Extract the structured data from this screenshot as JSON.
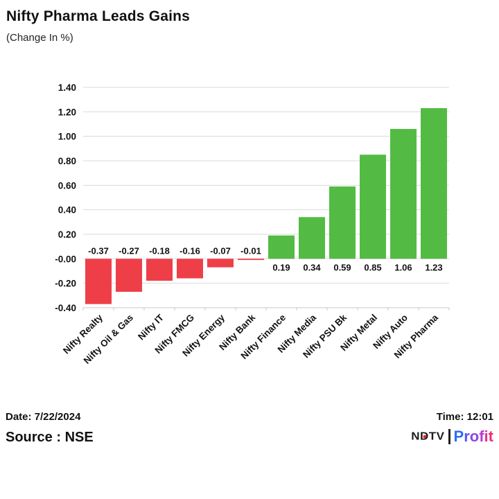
{
  "header": {
    "title": "Nifty Pharma Leads Gains",
    "subtitle": "(Change In %)"
  },
  "chart_data": {
    "type": "bar",
    "categories": [
      "Nifty Realty",
      "Nifty Oil & Gas",
      "Nifty IT",
      "Nifty FMCG",
      "Nifty Energy",
      "Nifty Bank",
      "Nifty Finance",
      "Nifty Media",
      "Nifty PSU Bk",
      "Nifty Metal",
      "Nifty Auto",
      "Nifty Pharma"
    ],
    "values": [
      -0.37,
      -0.27,
      -0.18,
      -0.16,
      -0.07,
      -0.01,
      0.19,
      0.34,
      0.59,
      0.85,
      1.06,
      1.23
    ],
    "bar_value_labels": [
      "-0.37",
      "-0.27",
      "-0.18",
      "-0.16",
      "-0.07",
      "-0.01",
      "0.19",
      "0.34",
      "0.59",
      "0.85",
      "1.06",
      "1.23"
    ],
    "title": "Nifty Pharma Leads Gains",
    "xlabel": "",
    "ylabel": "(Change In %)",
    "ylim": [
      -0.4,
      1.4
    ],
    "ytick_step": 0.2,
    "ytick_labels": [
      "1.40",
      "1.20",
      "1.00",
      "0.80",
      "0.60",
      "0.40",
      "0.20",
      "-0.00",
      "-0.20",
      "-0.40"
    ],
    "grid": true,
    "legend": false,
    "value_labels_shown": true,
    "xtick_rotation_deg": -45,
    "colors": {
      "positive": "#53bb44",
      "negative": "#ee3f48",
      "gridline": "#d9d9d9",
      "axis_line": "#c9c9c9",
      "text": "#111111"
    }
  },
  "footer": {
    "date_label": "Date: 7/22/2024",
    "source_label": "Source : NSE",
    "time_label": "Time: 12:01",
    "logo": {
      "ndtv_text": "NDTV",
      "profit_text": "Profit",
      "ndtv_color": "#1d1d1d",
      "dot_color": "#e8241d",
      "separator_color": "#1d1d1d",
      "profit_letter_colors": [
        "#2e6cf5",
        "#5a55f0",
        "#8a46ea",
        "#b93ad3",
        "#e12f9a",
        "#ee2d72"
      ]
    }
  }
}
